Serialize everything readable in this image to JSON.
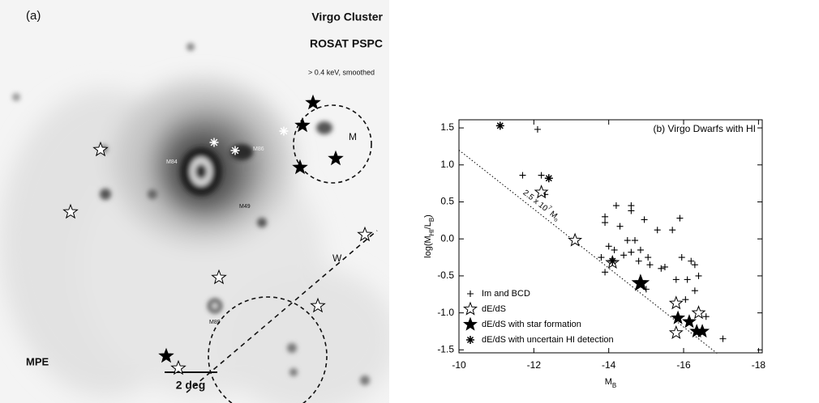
{
  "panel_a": {
    "label": "(a)",
    "title": "Virgo Cluster",
    "instrument": "ROSAT PSPC",
    "energy": "> 0.4 keV, smoothed",
    "institute": "MPE",
    "scale": "2 deg",
    "regions": [
      "M",
      "W"
    ],
    "sources": [
      "M86",
      "M84",
      "M89",
      "M49"
    ]
  },
  "chart_data": {
    "type": "scatter",
    "title": "(b) Virgo Dwarfs with HI",
    "x_label": [
      "M",
      "B"
    ],
    "y_label": [
      "log(M",
      "HI",
      "/L",
      "B",
      ")"
    ],
    "xlim": [
      -10,
      -18.1
    ],
    "ylim": [
      -1.54,
      1.61
    ],
    "xticks": [
      -10,
      -12,
      -14,
      -16,
      -18
    ],
    "yticks": [
      1.5,
      {
        "value": 1.0,
        "label": "1.0"
      },
      0.5,
      {
        "value": 0.0,
        "label": "0.0"
      },
      -0.5,
      {
        "value": -1.0,
        "label": "-1.0"
      },
      -1.5
    ],
    "legend": "lower left",
    "reference_line": {
      "x": [
        -10,
        -16.9
      ],
      "y": [
        1.2,
        -1.55
      ],
      "label": [
        "2.5 x 10",
        "7",
        " M",
        "o"
      ]
    },
    "series": [
      {
        "name": "Im and BCD",
        "marker": "plus",
        "color": "#000000",
        "x": [
          -11.7,
          -12.2,
          -12.3,
          -12.1,
          -13.9,
          -13.9,
          -14.2,
          -14.3,
          -14.6,
          -14.6,
          -14.95,
          -15.3,
          -15.9,
          -14.0,
          -14.15,
          -14.5,
          -14.7,
          -14.6,
          -14.85,
          -13.8,
          -14.1,
          -14.4,
          -14.8,
          -15.05,
          -15.1,
          -15.4,
          -15.7,
          -15.95,
          -16.2,
          -16.3,
          -15.8,
          -16.1,
          -16.3,
          -16.05,
          -16.4,
          -16.6,
          -17.05,
          -13.9,
          -15.5,
          -15.0
        ],
        "values": [
          0.86,
          0.86,
          0.6,
          1.48,
          0.3,
          0.22,
          0.45,
          0.17,
          0.45,
          0.38,
          0.26,
          0.12,
          0.28,
          -0.1,
          -0.15,
          -0.02,
          -0.02,
          -0.18,
          -0.15,
          -0.25,
          -0.27,
          -0.22,
          -0.3,
          -0.25,
          -0.35,
          -0.4,
          0.12,
          -0.25,
          -0.3,
          -0.35,
          -0.55,
          -0.55,
          -0.7,
          -0.82,
          -0.5,
          -1.05,
          -1.35,
          -0.45,
          -0.38,
          -0.68
        ]
      },
      {
        "name": "dE/dS",
        "marker": "open-star",
        "color": "#000000",
        "x": [
          -12.2,
          -13.1,
          -14.1,
          -15.8,
          -16.4,
          -15.8
        ],
        "values": [
          0.63,
          -0.02,
          -0.32,
          -0.87,
          -1.0,
          -1.27
        ]
      },
      {
        "name": "dE/dS with star formation",
        "marker": "filled-star",
        "color": "#000000",
        "x": [
          -14.85,
          -15.85,
          -16.15,
          -16.35,
          -16.5
        ],
        "values": [
          -0.6,
          -1.07,
          -1.12,
          -1.25,
          -1.25
        ]
      },
      {
        "name": "dE/dS with uncertain HI detection",
        "marker": "asterisk",
        "color": "#000000",
        "x": [
          -11.1,
          -12.4,
          -14.1
        ],
        "values": [
          1.53,
          0.82,
          -0.3
        ]
      }
    ]
  }
}
